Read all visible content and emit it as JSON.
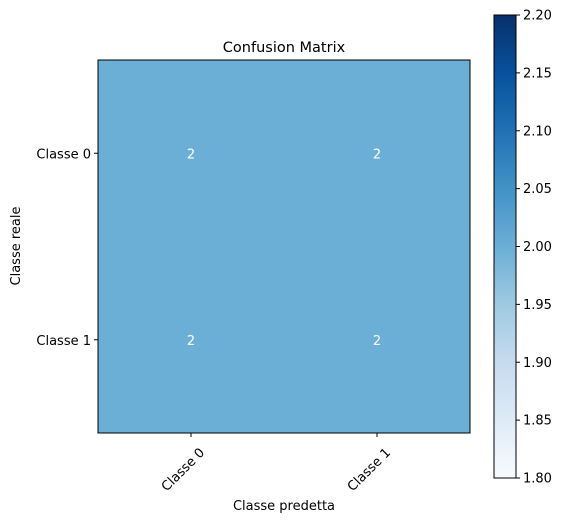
{
  "chart_data": {
    "type": "heatmap",
    "title": "Confusion Matrix",
    "xlabel": "Classe predetta",
    "ylabel": "Classe reale",
    "x_categories": [
      "Classe 0",
      "Classe 1"
    ],
    "y_categories": [
      "Classe 0",
      "Classe 1"
    ],
    "values": [
      [
        2,
        2
      ],
      [
        2,
        2
      ]
    ],
    "cell_color": "#6baed6",
    "cell_text_color": "#ffffff",
    "colorbar": {
      "range": [
        1.8,
        2.2
      ],
      "ticks": [
        "1.80",
        "1.85",
        "1.90",
        "1.95",
        "2.00",
        "2.05",
        "2.10",
        "2.15",
        "2.20"
      ],
      "colormap": "Blues",
      "stops": [
        "#f7fbff",
        "#deebf7",
        "#c6dbef",
        "#9ecae1",
        "#6baed6",
        "#4292c6",
        "#2171b5",
        "#08519c",
        "#08306b"
      ]
    }
  }
}
